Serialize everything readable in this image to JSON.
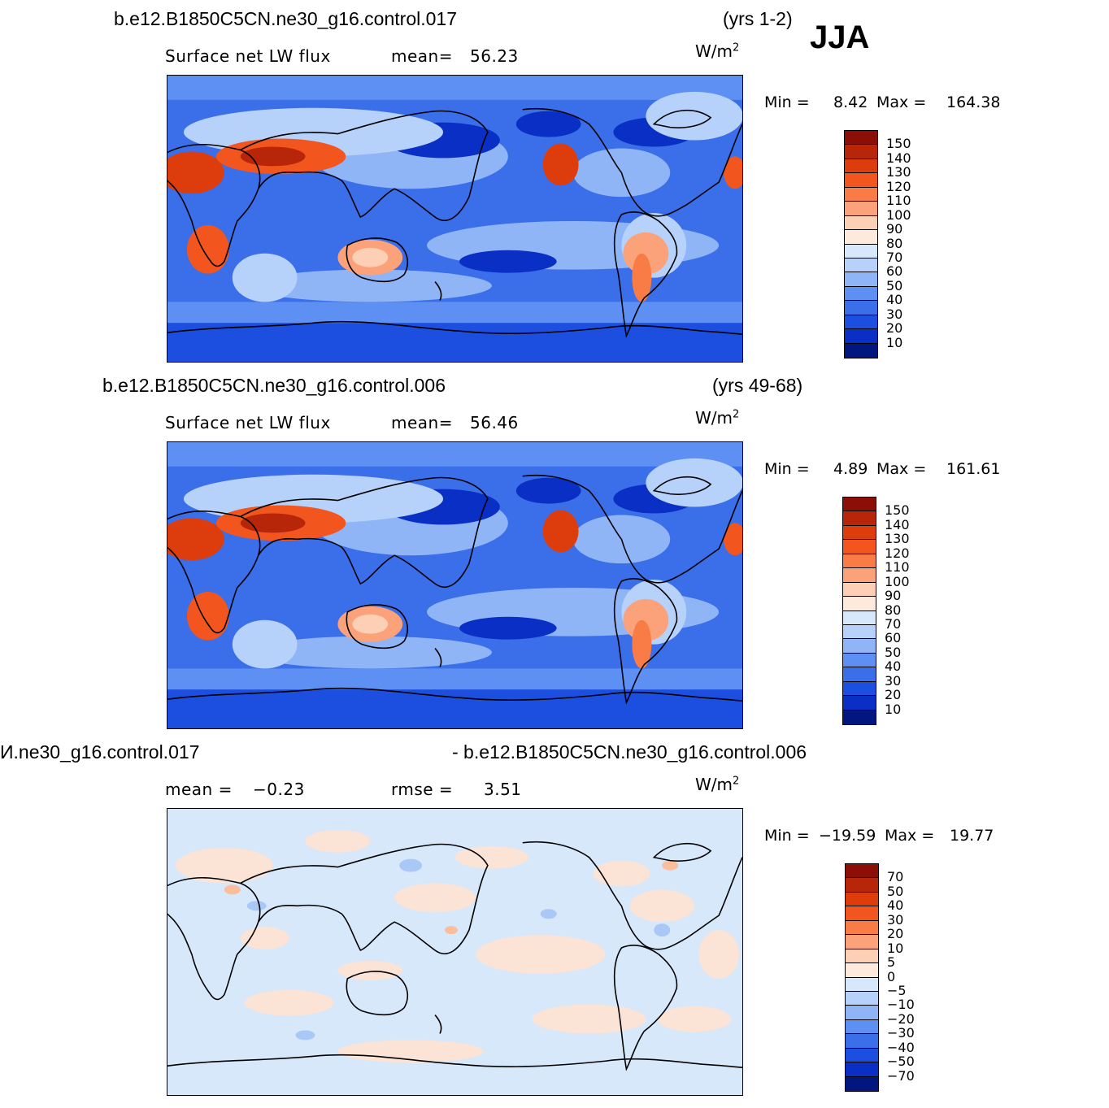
{
  "season": "JJA",
  "panels": [
    {
      "case": "b.e12.B1850C5CN.ne30_g16.control.017",
      "years": "(yrs 1-2)",
      "variable": "Surface  net  LW  flux",
      "stat1_label": "mean=",
      "stat1_value": "56.23",
      "units": "W/m",
      "units_exp": "2",
      "min_label": "Min  =",
      "min_value": "8.42",
      "max_label": "Max  =",
      "max_value": "164.38",
      "levels": [
        "150",
        "140",
        "130",
        "120",
        "110",
        "100",
        "90",
        "80",
        "70",
        "60",
        "50",
        "40",
        "30",
        "20",
        "10"
      ],
      "field": "absolute"
    },
    {
      "case": "b.e12.B1850C5CN.ne30_g16.control.006",
      "years": "(yrs 49-68)",
      "variable": "Surface  net  LW  flux",
      "stat1_label": "mean=",
      "stat1_value": "56.46",
      "units": "W/m",
      "units_exp": "2",
      "min_label": "Min  =",
      "min_value": "4.89",
      "max_label": "Max  =",
      "max_value": "161.61",
      "levels": [
        "150",
        "140",
        "130",
        "120",
        "110",
        "100",
        "90",
        "80",
        "70",
        "60",
        "50",
        "40",
        "30",
        "20",
        "10"
      ],
      "field": "absolute"
    },
    {
      "case": "И.ne30_g16.control.017",
      "case_right": "- b.e12.B1850C5CN.ne30_g16.control.006",
      "stat1_label": "mean  =",
      "stat1_value": "−0.23",
      "stat2_label": "rmse  =",
      "stat2_value": "3.51",
      "units": "W/m",
      "units_exp": "2",
      "min_label": "Min  =",
      "min_value": "−19.59",
      "max_label": "Max  =",
      "max_value": "19.77",
      "levels": [
        "70",
        "50",
        "40",
        "30",
        "20",
        "10",
        "5",
        "0",
        "−5",
        "−10",
        "−20",
        "−30",
        "−40",
        "−50",
        "−70"
      ],
      "field": "difference"
    }
  ],
  "colors": {
    "palette_top_to_bottom": [
      "#8b0f06",
      "#b8260a",
      "#dd3d0c",
      "#f2561e",
      "#f97b45",
      "#fba27a",
      "#fdd0b5",
      "#fdeadc",
      "#d7e8fb",
      "#b6d2fa",
      "#8fb5f7",
      "#5d90f2",
      "#3b6ee9",
      "#1c4ee0",
      "#0a2fc4",
      "#021680"
    ]
  }
}
